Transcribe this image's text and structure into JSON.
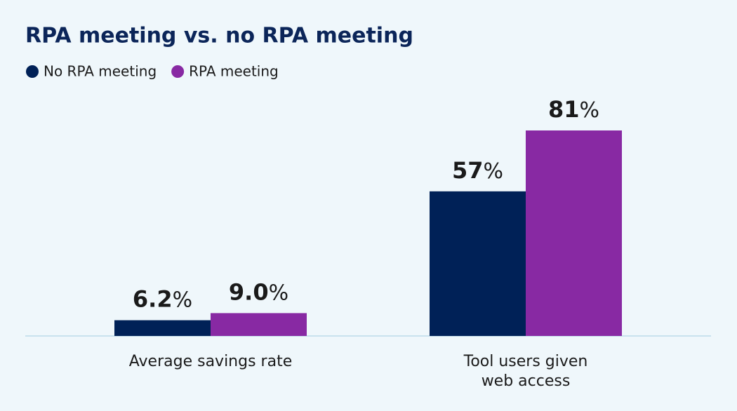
{
  "chart_data": {
    "type": "bar",
    "title": "RPA meeting vs. no RPA meeting",
    "categories": [
      "Average savings rate",
      "Tool users given\nweb access"
    ],
    "series": [
      {
        "name": "No RPA meeting",
        "color": "#002157",
        "values": [
          6.2,
          57
        ],
        "value_labels": [
          "6.2%",
          "57%"
        ]
      },
      {
        "name": "RPA meeting",
        "color": "#8829a3",
        "values": [
          9.0,
          81
        ],
        "value_labels": [
          "9.0%",
          "81%"
        ]
      }
    ]
  }
}
